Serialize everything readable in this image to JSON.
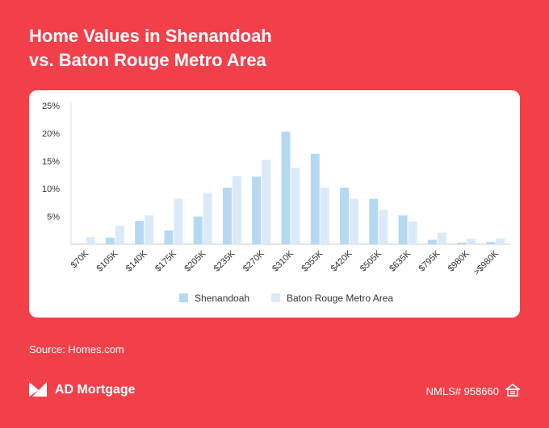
{
  "title_line1": "Home Values in Shenandoah",
  "title_line2": "vs. Baton Rouge Metro Area",
  "source": "Source: Homes.com",
  "brand": {
    "name": "AD Mortgage",
    "icon": "ad-mortgage-logo-icon"
  },
  "nmls": {
    "text": "NMLS# 958660",
    "icon": "equal-housing-icon"
  },
  "colors": {
    "background": "#f2404a",
    "card": "#ffffff",
    "shenandoah": "#b6d9f2",
    "baton_rouge": "#dbeaf8",
    "text_dark": "#333333"
  },
  "chart_data": {
    "type": "bar",
    "categories": [
      "$70K",
      "$105K",
      "$140K",
      "$175K",
      "$205K",
      "$235K",
      "$270K",
      "$310K",
      "$355K",
      "$420K",
      "$505K",
      "$635K",
      "$795K",
      "$980K",
      ">$980K"
    ],
    "series": [
      {
        "name": "Shenandoah",
        "values": [
          0,
          1.2,
          4.2,
          2.5,
          5,
          10.2,
          12.2,
          20.3,
          16.3,
          10.2,
          8.2,
          5.2,
          0.8,
          0.3,
          0.4
        ]
      },
      {
        "name": "Baton Rouge Metro Area",
        "values": [
          1.3,
          3.3,
          5.2,
          8.2,
          9.2,
          12.3,
          15.2,
          13.8,
          10.2,
          8.2,
          6.2,
          4.1,
          2.1,
          1.0,
          1.0
        ]
      }
    ],
    "yticks": [
      "5%",
      "10%",
      "15%",
      "20%",
      "25%"
    ],
    "ytick_values": [
      5,
      10,
      15,
      20,
      25
    ],
    "ylim": [
      0,
      25
    ],
    "grid": false,
    "legend_position": "bottom-center"
  }
}
